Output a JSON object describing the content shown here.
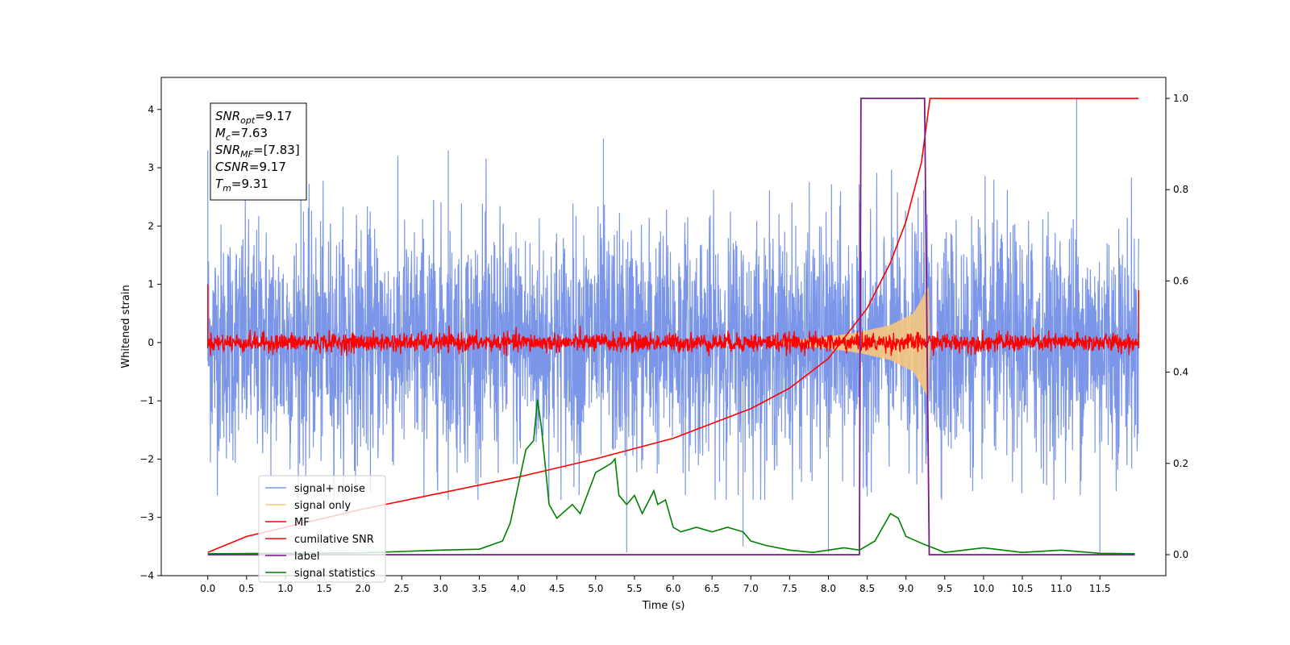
{
  "chart_data": {
    "type": "line",
    "title": "",
    "xlabel": "Time (s)",
    "ylabel": "Whitened strain",
    "xlim": [
      -0.6,
      12.35
    ],
    "ylim": [
      -4.0,
      4.55
    ],
    "y2lim": [
      -0.046,
      1.046
    ],
    "grid": false,
    "legend_position": "lower-left",
    "x_ticks": [
      "0.0",
      "0.5",
      "1.0",
      "1.5",
      "2.0",
      "2.5",
      "3.0",
      "3.5",
      "4.0",
      "4.5",
      "5.0",
      "5.5",
      "6.0",
      "6.5",
      "7.0",
      "7.5",
      "8.0",
      "8.5",
      "9.0",
      "9.5",
      "10.0",
      "10.5",
      "11.0",
      "11.5"
    ],
    "y_ticks": [
      "−4",
      "−3",
      "−2",
      "−1",
      "0",
      "1",
      "2",
      "3",
      "4"
    ],
    "y2_ticks": [
      "0.0",
      "0.2",
      "0.4",
      "0.6",
      "0.8",
      "1.0"
    ],
    "annotation": {
      "lines": [
        {
          "symbol": "SNR",
          "sub": "opt",
          "value": "=9.17"
        },
        {
          "symbol": "M",
          "sub": "c",
          "value": "=7.63"
        },
        {
          "symbol": "SNR",
          "sub": "MF",
          "value": "=[7.83]"
        },
        {
          "symbol": "CSNR",
          "sub": "",
          "value": "=9.17"
        },
        {
          "symbol": "T",
          "sub": "m",
          "value": "=9.31"
        }
      ]
    },
    "series": [
      {
        "name": "signal+ noise",
        "color": "#7b96e8",
        "axis": "left",
        "description_points": {
          "x_range": [
            0.0,
            12.0
          ],
          "envelope_upper": 2.6,
          "envelope_lower": -2.2,
          "peaks": [
            [
              0.0,
              3.3
            ],
            [
              1.2,
              3.1
            ],
            [
              3.1,
              3.3
            ],
            [
              5.1,
              3.5
            ],
            [
              5.4,
              -3.6
            ],
            [
              6.9,
              -3.5
            ],
            [
              8.0,
              -3.6
            ],
            [
              11.2,
              4.2
            ],
            [
              11.5,
              -3.6
            ]
          ]
        }
      },
      {
        "name": "signal only",
        "color": "#f5c77e",
        "axis": "left",
        "description_points": {
          "x": [
            8.0,
            8.4,
            8.8,
            9.1,
            9.29,
            9.31
          ],
          "amplitude": [
            0.1,
            0.18,
            0.3,
            0.5,
            0.95,
            0.0
          ]
        }
      },
      {
        "name": "MF",
        "color": "#ff0000",
        "axis": "left",
        "description_points": {
          "x_range": [
            0.0,
            12.0
          ],
          "band": [
            -0.18,
            0.2
          ],
          "edge_spikes": [
            [
              0.0,
              1.0
            ],
            [
              12.0,
              0.9
            ]
          ]
        }
      },
      {
        "name": "cumilative SNR",
        "color": "#ff0000",
        "axis": "right",
        "x": [
          0.0,
          0.5,
          1.0,
          2.0,
          3.0,
          4.0,
          5.0,
          6.0,
          7.0,
          7.5,
          8.0,
          8.5,
          8.8,
          9.0,
          9.2,
          9.31,
          9.4,
          12.0
        ],
        "y": [
          0.005,
          0.04,
          0.06,
          0.1,
          0.135,
          0.17,
          0.21,
          0.255,
          0.32,
          0.365,
          0.43,
          0.54,
          0.64,
          0.73,
          0.86,
          1.0,
          1.0,
          1.0
        ]
      },
      {
        "name": "label",
        "color": "#7a1a8a",
        "axis": "right",
        "x": [
          0.0,
          8.4,
          8.42,
          9.24,
          9.3,
          11.95
        ],
        "y": [
          0.0,
          0.0,
          1.0,
          1.0,
          0.0,
          0.0
        ]
      },
      {
        "name": "signal statistics",
        "color": "#008000",
        "axis": "right",
        "x": [
          0.0,
          1.0,
          2.0,
          3.0,
          3.5,
          3.8,
          3.9,
          4.0,
          4.1,
          4.2,
          4.25,
          4.3,
          4.4,
          4.5,
          4.7,
          4.8,
          5.0,
          5.1,
          5.2,
          5.25,
          5.3,
          5.4,
          5.5,
          5.6,
          5.75,
          5.8,
          5.9,
          6.0,
          6.1,
          6.3,
          6.5,
          6.7,
          6.9,
          7.0,
          7.2,
          7.5,
          7.8,
          8.0,
          8.2,
          8.4,
          8.6,
          8.8,
          8.9,
          9.0,
          9.2,
          9.5,
          10.0,
          10.5,
          11.0,
          11.5,
          11.95
        ],
        "y": [
          0.002,
          0.003,
          0.004,
          0.01,
          0.012,
          0.03,
          0.07,
          0.15,
          0.23,
          0.25,
          0.34,
          0.28,
          0.11,
          0.08,
          0.11,
          0.09,
          0.18,
          0.19,
          0.2,
          0.21,
          0.13,
          0.11,
          0.13,
          0.09,
          0.14,
          0.11,
          0.12,
          0.06,
          0.05,
          0.06,
          0.05,
          0.06,
          0.05,
          0.03,
          0.02,
          0.01,
          0.005,
          0.01,
          0.015,
          0.01,
          0.03,
          0.09,
          0.08,
          0.04,
          0.025,
          0.005,
          0.015,
          0.005,
          0.01,
          0.003,
          0.002
        ]
      }
    ]
  }
}
